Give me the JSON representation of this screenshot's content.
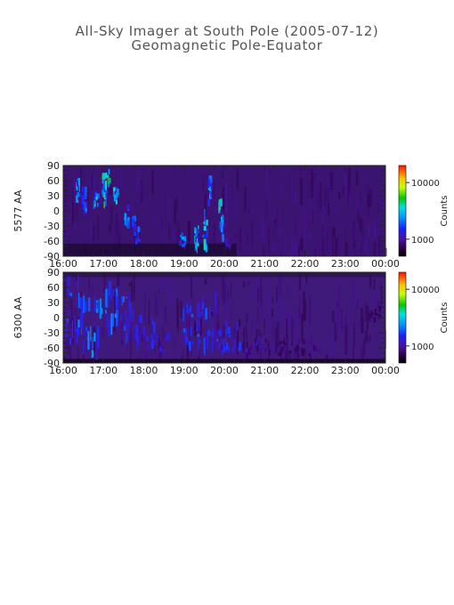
{
  "header": {
    "title": "All-Sky Imager at South Pole (2005-07-12)",
    "subtitle": "Geomagnetic Pole-Equator"
  },
  "chart_data": [
    {
      "type": "heatmap",
      "ylabel": "5577 AA",
      "x_ticks": [
        "16:00",
        "17:00",
        "18:00",
        "19:00",
        "20:00",
        "21:00",
        "22:00",
        "23:00",
        "00:00"
      ],
      "xlim": [
        "16:00",
        "00:00"
      ],
      "y_ticks": [
        90,
        60,
        30,
        0,
        -30,
        -60,
        -90
      ],
      "ylim": [
        -90,
        90
      ],
      "colorbar": {
        "label": "Counts",
        "ticks": [
          10000,
          1000
        ],
        "tick_labels": [
          "10000",
          "1000"
        ],
        "scale": "log",
        "range": [
          500,
          20000
        ]
      },
      "bursts": [
        {
          "t": 16.35,
          "lat": 40,
          "w": 0.05,
          "h": 22,
          "amp": 0.45
        },
        {
          "t": 16.5,
          "lat": 20,
          "w": 0.05,
          "h": 28,
          "amp": 0.4
        },
        {
          "t": 16.8,
          "lat": 20,
          "w": 0.06,
          "h": 15,
          "amp": 0.55
        },
        {
          "t": 17.0,
          "lat": 40,
          "w": 0.05,
          "h": 30,
          "amp": 0.6
        },
        {
          "t": 17.1,
          "lat": 65,
          "w": 0.05,
          "h": 15,
          "amp": 0.6
        },
        {
          "t": 17.28,
          "lat": 30,
          "w": 0.05,
          "h": 15,
          "amp": 0.55
        },
        {
          "t": 17.55,
          "lat": -10,
          "w": 0.05,
          "h": 20,
          "amp": 0.42
        },
        {
          "t": 17.72,
          "lat": -30,
          "w": 0.04,
          "h": 15,
          "amp": 0.4
        },
        {
          "t": 17.82,
          "lat": -50,
          "w": 0.04,
          "h": 15,
          "amp": 0.35
        },
        {
          "t": 18.95,
          "lat": -60,
          "w": 0.08,
          "h": 15,
          "amp": 0.45
        },
        {
          "t": 19.3,
          "lat": -55,
          "w": 0.05,
          "h": 25,
          "amp": 0.5
        },
        {
          "t": 19.5,
          "lat": -40,
          "w": 0.05,
          "h": 35,
          "amp": 0.55
        },
        {
          "t": 19.62,
          "lat": 40,
          "w": 0.04,
          "h": 25,
          "amp": 0.45
        },
        {
          "t": 19.9,
          "lat": -20,
          "w": 0.05,
          "h": 40,
          "amp": 0.52
        },
        {
          "t": 20.08,
          "lat": -65,
          "w": 0.08,
          "h": 10,
          "amp": 0.3
        }
      ]
    },
    {
      "type": "heatmap",
      "ylabel": "6300 AA",
      "x_ticks": [
        "16:00",
        "17:00",
        "18:00",
        "19:00",
        "20:00",
        "21:00",
        "22:00",
        "23:00",
        "00:00"
      ],
      "xlim": [
        "16:00",
        "00:00"
      ],
      "y_ticks": [
        90,
        60,
        30,
        0,
        -30,
        -60,
        -90
      ],
      "ylim": [
        -90,
        90
      ],
      "colorbar": {
        "label": "Counts",
        "ticks": [
          10000,
          1000
        ],
        "tick_labels": [
          "10000",
          "1000"
        ],
        "scale": "log",
        "range": [
          500,
          20000
        ]
      },
      "bursts": [
        {
          "t": 16.25,
          "lat": 10,
          "w": 0.2,
          "h": 60,
          "amp": 0.38
        },
        {
          "t": 16.7,
          "lat": -10,
          "w": 0.22,
          "h": 70,
          "amp": 0.42
        },
        {
          "t": 17.15,
          "lat": 20,
          "w": 0.2,
          "h": 60,
          "amp": 0.4
        },
        {
          "t": 17.55,
          "lat": 0,
          "w": 0.2,
          "h": 50,
          "amp": 0.35
        },
        {
          "t": 18.0,
          "lat": -30,
          "w": 0.25,
          "h": 30,
          "amp": 0.3
        },
        {
          "t": 18.35,
          "lat": -50,
          "w": 0.25,
          "h": 15,
          "amp": 0.27
        },
        {
          "t": 19.2,
          "lat": -20,
          "w": 0.25,
          "h": 45,
          "amp": 0.34
        },
        {
          "t": 19.6,
          "lat": -10,
          "w": 0.3,
          "h": 55,
          "amp": 0.36
        },
        {
          "t": 20.1,
          "lat": -40,
          "w": 0.3,
          "h": 30,
          "amp": 0.3
        },
        {
          "t": 20.8,
          "lat": -55,
          "w": 0.4,
          "h": 15,
          "amp": 0.22
        },
        {
          "t": 21.8,
          "lat": -60,
          "w": 0.5,
          "h": 15,
          "amp": 0.18
        },
        {
          "t": 23.7,
          "lat": 10,
          "w": 0.15,
          "h": 15,
          "amp": 0.16
        }
      ]
    }
  ]
}
